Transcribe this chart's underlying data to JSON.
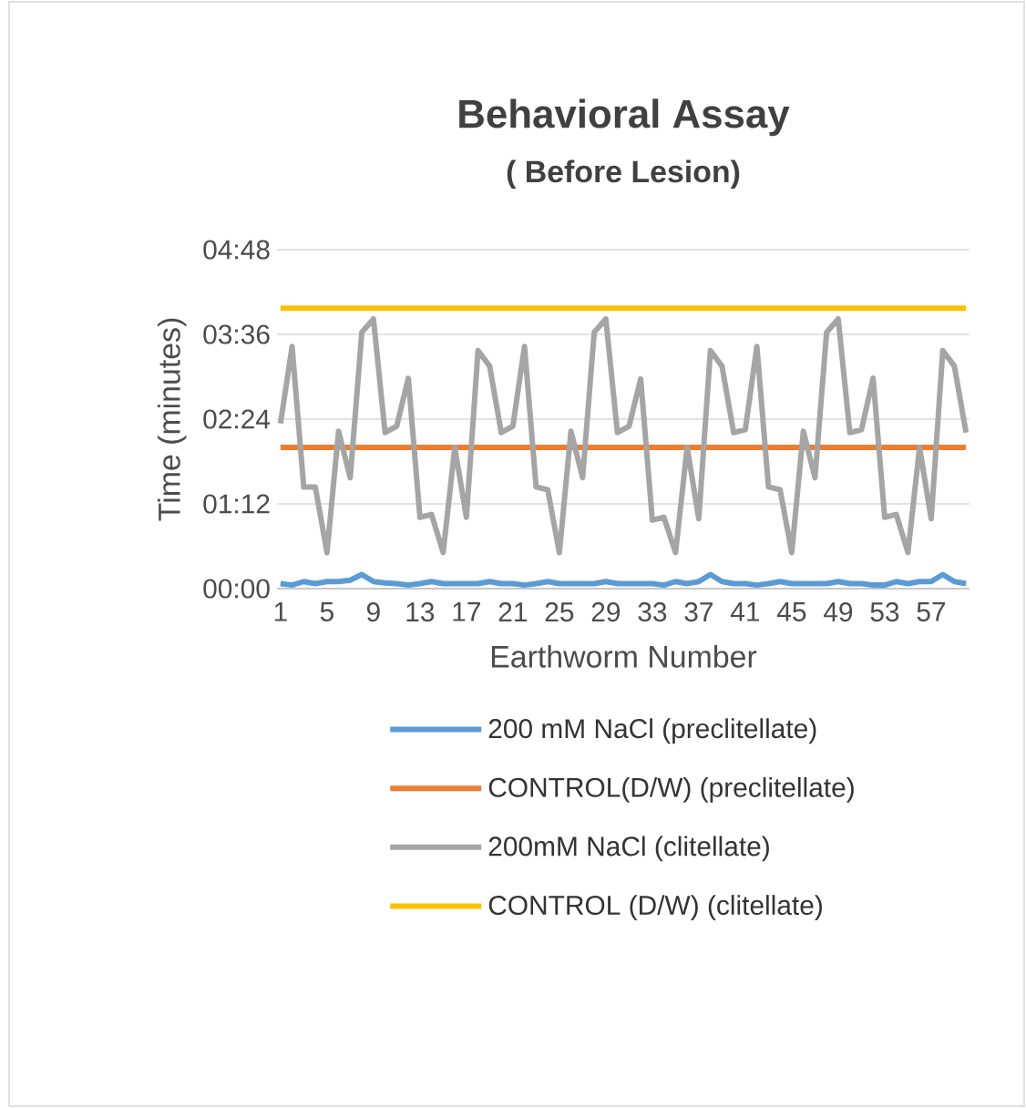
{
  "chart_data": {
    "type": "line",
    "title": "Behavioral Assay",
    "subtitle": "( Before Lesion)",
    "xlabel": "Earthworm Number",
    "ylabel": "Time (minutes)",
    "categories": [
      "1",
      null,
      null,
      null,
      "5",
      null,
      null,
      null,
      "9",
      null,
      null,
      null,
      "13",
      null,
      null,
      null,
      "17",
      null,
      null,
      null,
      "21",
      null,
      null,
      null,
      "25",
      null,
      null,
      null,
      "29",
      null,
      null,
      null,
      "33",
      null,
      null,
      null,
      "37",
      null,
      null,
      null,
      "41",
      null,
      null,
      null,
      "45",
      null,
      null,
      null,
      "49",
      null,
      null,
      null,
      "53",
      null,
      null,
      null,
      "57",
      null,
      null,
      null
    ],
    "series": [
      {
        "name": "200 mM NaCl (preclitellate)",
        "color": "#5b9bd5",
        "values": [
          0.07,
          0.05,
          0.1,
          0.07,
          0.1,
          0.1,
          0.12,
          0.2,
          0.1,
          0.08,
          0.07,
          0.05,
          0.07,
          0.1,
          0.07,
          0.07,
          0.07,
          0.07,
          0.1,
          0.07,
          0.07,
          0.05,
          0.07,
          0.1,
          0.07,
          0.07,
          0.07,
          0.07,
          0.1,
          0.07,
          0.07,
          0.07,
          0.07,
          0.05,
          0.1,
          0.07,
          0.1,
          0.2,
          0.1,
          0.07,
          0.07,
          0.05,
          0.07,
          0.1,
          0.07,
          0.07,
          0.07,
          0.07,
          0.1,
          0.07,
          0.07,
          0.05,
          0.05,
          0.1,
          0.07,
          0.1,
          0.1,
          0.2,
          0.1,
          0.07
        ]
      },
      {
        "name": "CONTROL(D/W) (preclitellate)",
        "color": "#ed7d31",
        "values": [
          2.0,
          2.0,
          2.0,
          2.0,
          2.0,
          2.0,
          2.0,
          2.0,
          2.0,
          2.0,
          2.0,
          2.0,
          2.0,
          2.0,
          2.0,
          2.0,
          2.0,
          2.0,
          2.0,
          2.0,
          2.0,
          2.0,
          2.0,
          2.0,
          2.0,
          2.0,
          2.0,
          2.0,
          2.0,
          2.0,
          2.0,
          2.0,
          2.0,
          2.0,
          2.0,
          2.0,
          2.0,
          2.0,
          2.0,
          2.0,
          2.0,
          2.0,
          2.0,
          2.0,
          2.0,
          2.0,
          2.0,
          2.0,
          2.0,
          2.0,
          2.0,
          2.0,
          2.0,
          2.0,
          2.0,
          2.0,
          2.0,
          2.0,
          2.0,
          2.0
        ]
      },
      {
        "name": "200mM NaCl  (clitellate)",
        "color": "#a5a5a5",
        "values": [
          2.34,
          3.43,
          1.44,
          1.44,
          0.51,
          2.23,
          1.57,
          3.63,
          3.82,
          2.21,
          2.3,
          2.98,
          1.01,
          1.05,
          0.51,
          2.0,
          1.01,
          3.37,
          3.15,
          2.21,
          2.3,
          3.43,
          1.44,
          1.4,
          0.51,
          2.23,
          1.57,
          3.63,
          3.82,
          2.21,
          2.3,
          2.97,
          0.97,
          1.01,
          0.51,
          2.0,
          0.99,
          3.37,
          3.15,
          2.21,
          2.25,
          3.43,
          1.44,
          1.4,
          0.51,
          2.23,
          1.57,
          3.63,
          3.82,
          2.21,
          2.25,
          2.98,
          1.01,
          1.05,
          0.51,
          2.0,
          0.99,
          3.37,
          3.15,
          2.21
        ]
      },
      {
        "name": "CONTROL (D/W)  (clitellate)",
        "color": "#ffc000",
        "values": [
          3.97,
          3.97,
          3.97,
          3.97,
          3.97,
          3.97,
          3.97,
          3.97,
          3.97,
          3.97,
          3.97,
          3.97,
          3.97,
          3.97,
          3.97,
          3.97,
          3.97,
          3.97,
          3.97,
          3.97,
          3.97,
          3.97,
          3.97,
          3.97,
          3.97,
          3.97,
          3.97,
          3.97,
          3.97,
          3.97,
          3.97,
          3.97,
          3.97,
          3.97,
          3.97,
          3.97,
          3.97,
          3.97,
          3.97,
          3.97,
          3.97,
          3.97,
          3.97,
          3.97,
          3.97,
          3.97,
          3.97,
          3.97,
          3.97,
          3.97,
          3.97,
          3.97,
          3.97,
          3.97,
          3.97,
          3.97,
          3.97,
          3.97,
          3.97,
          3.97
        ]
      }
    ],
    "ylim": [
      0,
      4.8
    ],
    "yticks": [
      {
        "value": 0,
        "label": "00:00"
      },
      {
        "value": 1.2,
        "label": "01:12"
      },
      {
        "value": 2.4,
        "label": "02:24"
      },
      {
        "value": 3.6,
        "label": "03:36"
      },
      {
        "value": 4.8,
        "label": "04:48"
      }
    ],
    "grid": "y",
    "legend": "bottom",
    "marker": "none",
    "line_style": "solid"
  }
}
